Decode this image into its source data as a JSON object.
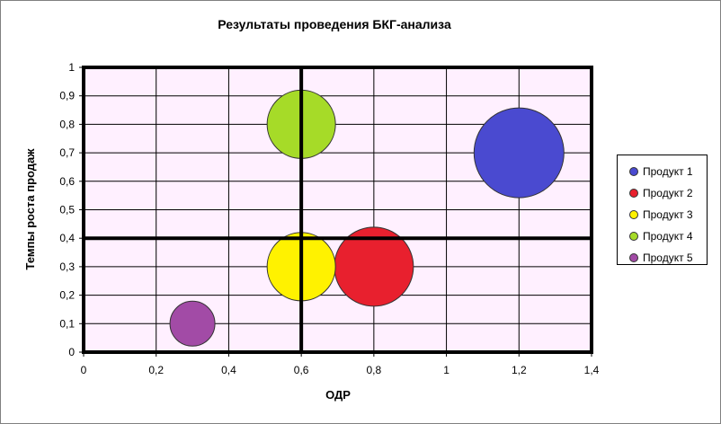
{
  "chart_data": {
    "type": "bubble",
    "title": "Результаты проведения БКГ-анализа",
    "xlabel": "ОДР",
    "ylabel": "Темпы роста продаж",
    "xlim": [
      0,
      1.4
    ],
    "ylim": [
      0,
      1
    ],
    "x_ticks": [
      "0",
      "0,2",
      "0,4",
      "0,6",
      "0,8",
      "1",
      "1,2",
      "1,4"
    ],
    "x_tick_values": [
      0,
      0.2,
      0.4,
      0.6,
      0.8,
      1.0,
      1.2,
      1.4
    ],
    "y_ticks": [
      "0",
      "0,1",
      "0,2",
      "0,3",
      "0,4",
      "0,5",
      "0,6",
      "0,7",
      "0,8",
      "0,9",
      "1"
    ],
    "y_tick_values": [
      0,
      0.1,
      0.2,
      0.3,
      0.4,
      0.5,
      0.6,
      0.7,
      0.8,
      0.9,
      1.0
    ],
    "grid": true,
    "plot_background": "#FFF0FF",
    "quadrant_lines": {
      "x": 0.6,
      "y": 0.4
    },
    "legend_position": "right",
    "series": [
      {
        "name": "Продукт 1",
        "x": 1.2,
        "y": 0.7,
        "size": 2.5,
        "color": "#4A4AD0"
      },
      {
        "name": "Продукт 2",
        "x": 0.8,
        "y": 0.3,
        "size": 2.2,
        "color": "#E8202E"
      },
      {
        "name": "Продукт 3",
        "x": 0.6,
        "y": 0.3,
        "size": 1.9,
        "color": "#FFF200"
      },
      {
        "name": "Продукт 4",
        "x": 0.6,
        "y": 0.8,
        "size": 1.9,
        "color": "#A6DB28"
      },
      {
        "name": "Продукт 5",
        "x": 0.3,
        "y": 0.1,
        "size": 1.25,
        "color": "#A24BA6"
      }
    ]
  }
}
